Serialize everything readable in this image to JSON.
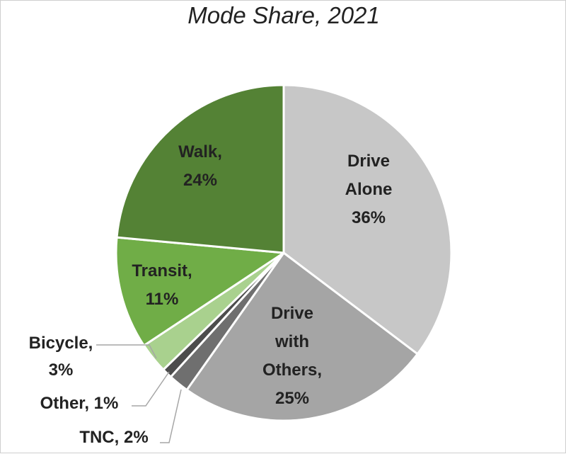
{
  "chart_data": {
    "type": "pie",
    "title": "Mode Share, 2021",
    "slices": [
      {
        "name": "Drive Alone",
        "value": 36,
        "color": "#c7c7c7",
        "label_lines": [
          "Drive",
          "Alone",
          "36%"
        ]
      },
      {
        "name": "Drive with Others",
        "value": 25,
        "color": "#a5a5a5",
        "label_lines": [
          "Drive",
          "with",
          "Others,",
          "25%"
        ]
      },
      {
        "name": "TNC",
        "value": 2,
        "color": "#6f6f6f",
        "label_lines": [
          "TNC, 2%"
        ]
      },
      {
        "name": "Other",
        "value": 1,
        "color": "#4c4c4c",
        "label_lines": [
          "Other, 1%"
        ]
      },
      {
        "name": "Bicycle",
        "value": 3,
        "color": "#a9d18e",
        "label_lines": [
          "Bicycle,",
          "3%"
        ]
      },
      {
        "name": "Transit",
        "value": 11,
        "color": "#70ad47",
        "label_lines": [
          "Transit,",
          "11%"
        ]
      },
      {
        "name": "Walk",
        "value": 24,
        "color": "#548235",
        "label_lines": [
          "Walk,",
          "24%"
        ]
      }
    ]
  }
}
